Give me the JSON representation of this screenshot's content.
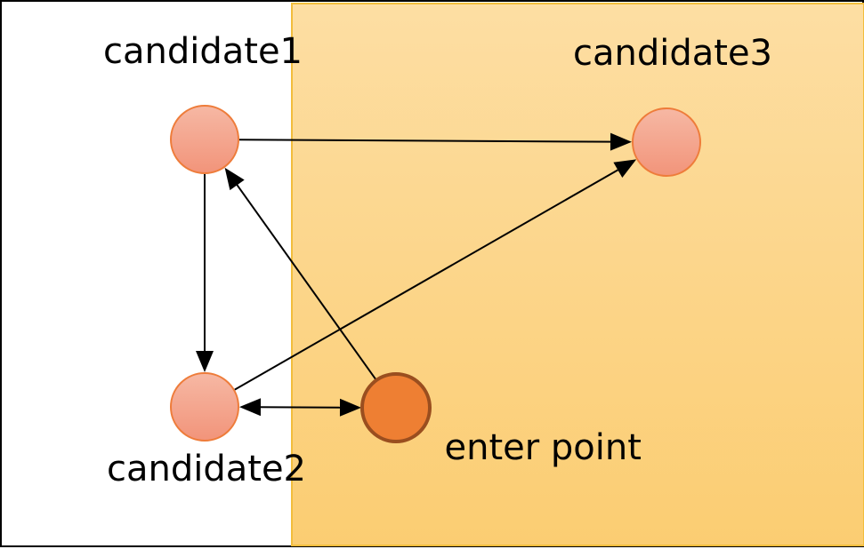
{
  "nodes": [
    {
      "id": "candidate1",
      "label": "candidate1",
      "kind": "candidate"
    },
    {
      "id": "candidate2",
      "label": "candidate2",
      "kind": "candidate"
    },
    {
      "id": "candidate3",
      "label": "candidate3",
      "kind": "candidate"
    },
    {
      "id": "enter-point",
      "label": "enter point",
      "kind": "entry"
    }
  ],
  "edges": [
    {
      "from": "candidate1",
      "to": "candidate3",
      "bidirectional": false
    },
    {
      "from": "candidate1",
      "to": "candidate2",
      "bidirectional": false
    },
    {
      "from": "candidate2",
      "to": "candidate3",
      "bidirectional": false
    },
    {
      "from": "enter-point",
      "to": "candidate1",
      "bidirectional": false
    },
    {
      "from": "candidate2",
      "to": "enter-point",
      "bidirectional": true
    }
  ],
  "colors": {
    "candidate_fill_top": "#f6b8a4",
    "candidate_fill_bottom": "#f2947a",
    "candidate_stroke": "#ee7c3a",
    "entry_fill": "#ee7f33",
    "entry_stroke": "#9a4e1f",
    "region_top": "#fddea3",
    "region_bottom": "#fbcd72",
    "region_stroke": "#f2bd3c",
    "edge": "#000000"
  }
}
